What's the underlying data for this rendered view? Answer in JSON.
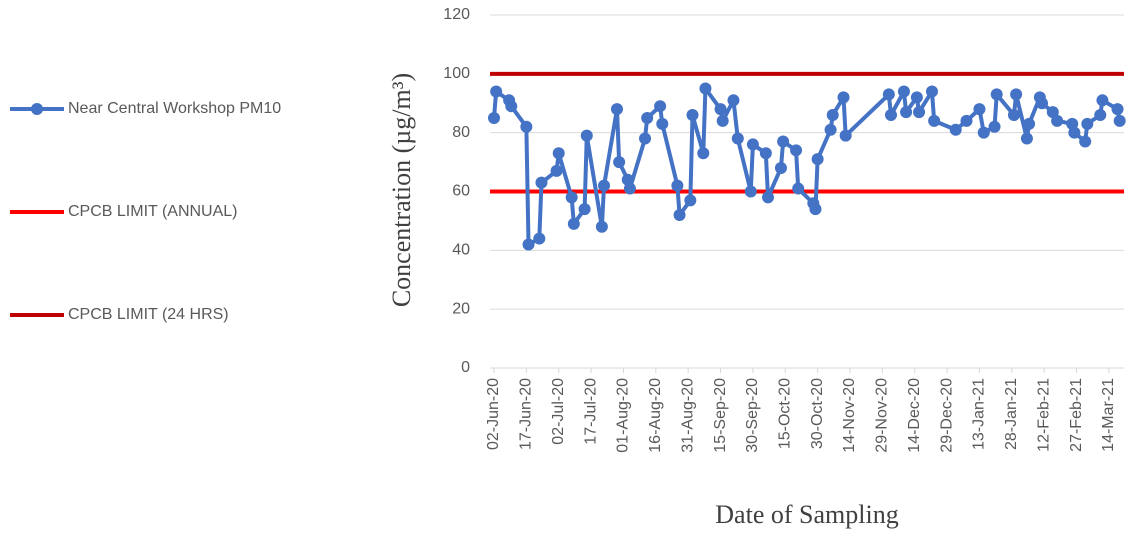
{
  "chart_data": {
    "type": "line",
    "xlabel": "Date of Sampling",
    "ylabel": "Concentration (µg/m³)",
    "ylim": [
      0,
      120
    ],
    "yticks": [
      0,
      20,
      40,
      60,
      80,
      100,
      120
    ],
    "xlim": [
      "2020-06-02",
      "2021-03-21"
    ],
    "xticks": [
      {
        "value": "2020-06-02",
        "label": "02-Jun-20"
      },
      {
        "value": "2020-06-17",
        "label": "17-Jun-20"
      },
      {
        "value": "2020-07-02",
        "label": "02-Jul-20"
      },
      {
        "value": "2020-07-17",
        "label": "17-Jul-20"
      },
      {
        "value": "2020-08-01",
        "label": "01-Aug-20"
      },
      {
        "value": "2020-08-16",
        "label": "16-Aug-20"
      },
      {
        "value": "2020-08-31",
        "label": "31-Aug-20"
      },
      {
        "value": "2020-09-15",
        "label": "15-Sep-20"
      },
      {
        "value": "2020-09-30",
        "label": "30-Sep-20"
      },
      {
        "value": "2020-10-15",
        "label": "15-Oct-20"
      },
      {
        "value": "2020-10-30",
        "label": "30-Oct-20"
      },
      {
        "value": "2020-11-14",
        "label": "14-Nov-20"
      },
      {
        "value": "2020-11-29",
        "label": "29-Nov-20"
      },
      {
        "value": "2020-12-14",
        "label": "14-Dec-20"
      },
      {
        "value": "2020-12-29",
        "label": "29-Dec-20"
      },
      {
        "value": "2021-01-13",
        "label": "13-Jan-21"
      },
      {
        "value": "2021-01-28",
        "label": "28-Jan-21"
      },
      {
        "value": "2021-02-12",
        "label": "12-Feb-21"
      },
      {
        "value": "2021-02-27",
        "label": "27-Feb-21"
      },
      {
        "value": "2021-03-14",
        "label": "14-Mar-21"
      }
    ],
    "grid": true,
    "legend": "left",
    "series": [
      {
        "name": "Near Central Workshop PM10",
        "color": "#4472c4",
        "x": [
          "2020-06-02",
          "2020-06-03",
          "2020-06-09",
          "2020-06-10",
          "2020-06-17",
          "2020-06-18",
          "2020-06-23",
          "2020-06-24",
          "2020-07-01",
          "2020-07-02",
          "2020-07-08",
          "2020-07-09",
          "2020-07-14",
          "2020-07-15",
          "2020-07-22",
          "2020-07-23",
          "2020-07-29",
          "2020-07-30",
          "2020-08-03",
          "2020-08-04",
          "2020-08-11",
          "2020-08-12",
          "2020-08-18",
          "2020-08-19",
          "2020-08-26",
          "2020-08-27",
          "2020-09-01",
          "2020-09-02",
          "2020-09-07",
          "2020-09-08",
          "2020-09-15",
          "2020-09-16",
          "2020-09-21",
          "2020-09-23",
          "2020-09-29",
          "2020-09-30",
          "2020-10-06",
          "2020-10-07",
          "2020-10-13",
          "2020-10-14",
          "2020-10-20",
          "2020-10-21",
          "2020-10-28",
          "2020-10-29",
          "2020-10-30",
          "2020-11-05",
          "2020-11-06",
          "2020-11-11",
          "2020-11-12",
          "2020-12-02",
          "2020-12-03",
          "2020-12-09",
          "2020-12-10",
          "2020-12-15",
          "2020-12-16",
          "2020-12-22",
          "2020-12-23",
          "2021-01-02",
          "2021-01-07",
          "2021-01-13",
          "2021-01-15",
          "2021-01-20",
          "2021-01-21",
          "2021-01-29",
          "2021-01-30",
          "2021-02-04",
          "2021-02-05",
          "2021-02-10",
          "2021-02-11",
          "2021-02-16",
          "2021-02-18",
          "2021-02-25",
          "2021-02-26",
          "2021-03-03",
          "2021-03-04",
          "2021-03-10",
          "2021-03-11",
          "2021-03-18",
          "2021-03-19"
        ],
        "values": [
          85,
          94,
          91,
          89,
          82,
          42,
          44,
          63,
          67,
          73,
          58,
          49,
          54,
          79,
          48,
          62,
          88,
          70,
          64,
          61,
          78,
          85,
          89,
          83,
          62,
          52,
          57,
          86,
          73,
          95,
          88,
          84,
          91,
          78,
          60,
          76,
          73,
          58,
          68,
          77,
          74,
          61,
          56,
          54,
          71,
          81,
          86,
          92,
          79,
          93,
          86,
          94,
          87,
          92,
          87,
          94,
          84,
          81,
          84,
          88,
          80,
          82,
          93,
          86,
          93,
          78,
          83,
          92,
          90,
          87,
          84,
          83,
          80,
          77,
          83,
          86,
          91,
          88,
          84
        ]
      }
    ],
    "reference_lines": [
      {
        "name": "CPCB LIMIT (ANNUAL)",
        "color": "#ff0000",
        "value": 60
      },
      {
        "name": "CPCB LIMIT (24 HRS)",
        "color": "#c00000",
        "value": 100
      }
    ]
  }
}
